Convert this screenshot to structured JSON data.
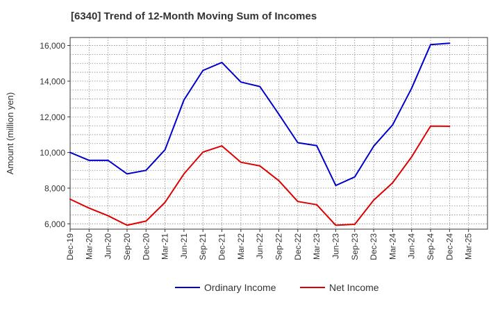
{
  "chart_data": {
    "type": "line",
    "title": "[6340]  Trend of 12-Month Moving Sum of Incomes",
    "xlabel": "",
    "ylabel": "Amount (million yen)",
    "ylim": [
      5700,
      16450
    ],
    "yticks": [
      6000,
      8000,
      10000,
      12000,
      14000,
      16000
    ],
    "ytick_labels": [
      "6,000",
      "8,000",
      "10,000",
      "12,000",
      "14,000",
      "16,000"
    ],
    "categories": [
      "Dec-19",
      "Mar-20",
      "Jun-20",
      "Sep-20",
      "Dec-20",
      "Mar-21",
      "Jun-21",
      "Sep-21",
      "Dec-21",
      "Mar-22",
      "Jun-22",
      "Sep-22",
      "Dec-22",
      "Mar-23",
      "Jun-23",
      "Sep-23",
      "Dec-23",
      "Mar-24",
      "Jun-24",
      "Sep-24",
      "Dec-24",
      "Mar-25"
    ],
    "grid": true,
    "legend_position": "bottom-center",
    "series": [
      {
        "name": "Ordinary Income",
        "color": "#0000cc",
        "values": [
          10000,
          9560,
          9560,
          8800,
          9000,
          10150,
          12950,
          14600,
          15050,
          13950,
          13700,
          12150,
          10550,
          10380,
          8150,
          8630,
          10350,
          11550,
          13600,
          16050,
          16130,
          null
        ]
      },
      {
        "name": "Net Income",
        "color": "#dd0000",
        "values": [
          7380,
          6880,
          6450,
          5920,
          6150,
          7200,
          8800,
          10020,
          10370,
          9450,
          9250,
          8420,
          7250,
          7070,
          5920,
          5970,
          7330,
          8300,
          9750,
          11480,
          11470,
          null
        ]
      }
    ]
  }
}
